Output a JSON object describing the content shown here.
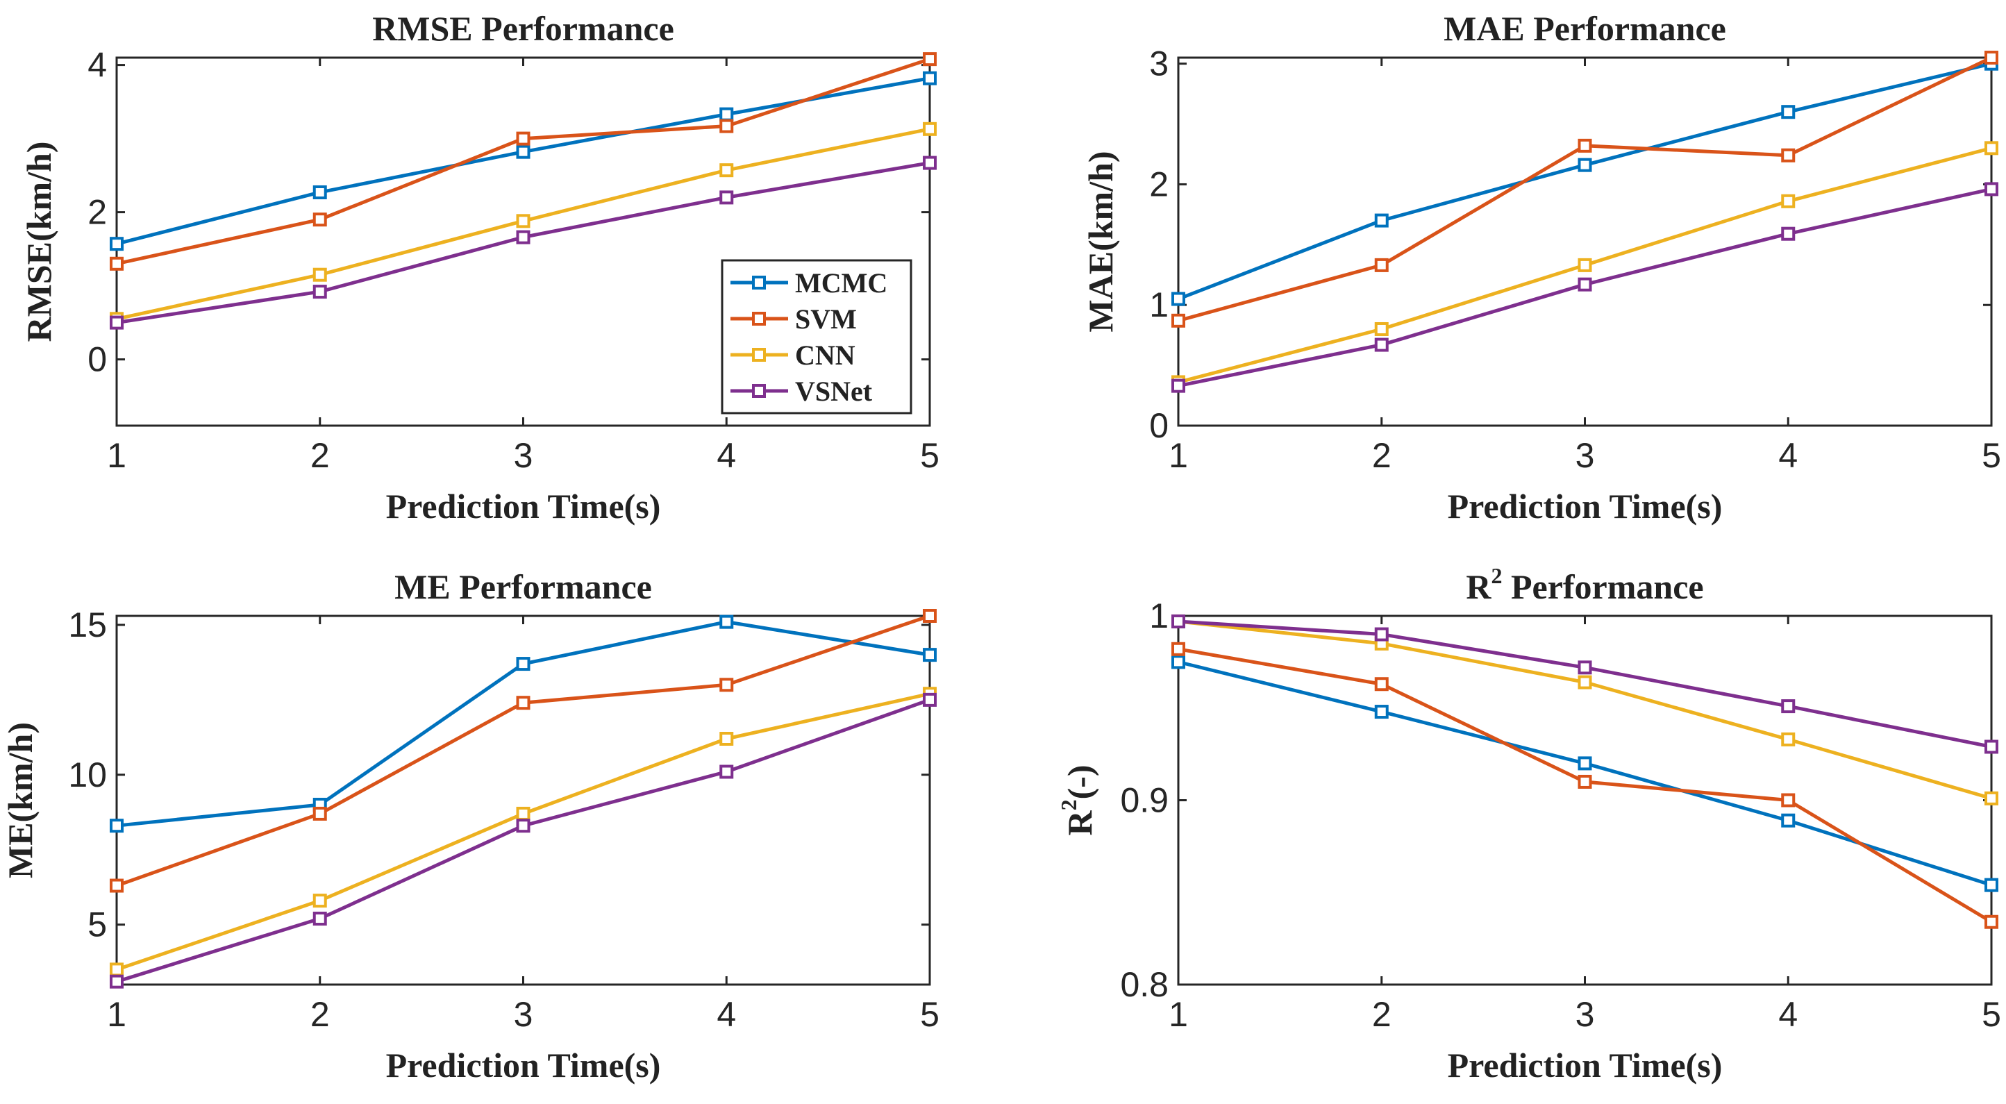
{
  "colors": {
    "MCMC": "#0072BD",
    "SVM": "#D95319",
    "CNN": "#EDB120",
    "VSNet": "#7E2F8E",
    "axis": "#262626"
  },
  "legend": [
    "MCMC",
    "SVM",
    "CNN",
    "VSNet"
  ],
  "chart_data": [
    {
      "id": "rmse",
      "type": "line",
      "title": "RMSE Performance",
      "xlabel": "Prediction Time(s)",
      "ylabel": "RMSE(km/h)",
      "x": [
        1,
        2,
        3,
        4,
        5
      ],
      "xticks": [
        "1",
        "2",
        "3",
        "4",
        "5"
      ],
      "ylim": [
        -0.9,
        4.1
      ],
      "yticks": [
        0,
        2,
        4
      ],
      "ytick_labels": [
        "0",
        "2",
        "4"
      ],
      "legend_position": "bottom-right",
      "series": [
        {
          "name": "MCMC",
          "values": [
            1.57,
            2.27,
            2.82,
            3.33,
            3.82
          ]
        },
        {
          "name": "SVM",
          "values": [
            1.3,
            1.9,
            3.0,
            3.17,
            4.08
          ]
        },
        {
          "name": "CNN",
          "values": [
            0.55,
            1.15,
            1.88,
            2.57,
            3.13
          ]
        },
        {
          "name": "VSNet",
          "values": [
            0.5,
            0.92,
            1.66,
            2.2,
            2.67
          ]
        }
      ]
    },
    {
      "id": "mae",
      "type": "line",
      "title": "MAE Performance",
      "xlabel": "Prediction Time(s)",
      "ylabel": "MAE(km/h)",
      "x": [
        1,
        2,
        3,
        4,
        5
      ],
      "xticks": [
        "1",
        "2",
        "3",
        "4",
        "5"
      ],
      "ylim": [
        0,
        3.05
      ],
      "yticks": [
        0,
        1,
        2,
        3
      ],
      "ytick_labels": [
        "0",
        "1",
        "2",
        "3"
      ],
      "series": [
        {
          "name": "MCMC",
          "values": [
            1.05,
            1.7,
            2.16,
            2.6,
            3.0
          ]
        },
        {
          "name": "SVM",
          "values": [
            0.87,
            1.33,
            2.32,
            2.24,
            3.05
          ]
        },
        {
          "name": "CNN",
          "values": [
            0.36,
            0.8,
            1.33,
            1.86,
            2.3
          ]
        },
        {
          "name": "VSNet",
          "values": [
            0.33,
            0.67,
            1.17,
            1.59,
            1.96
          ]
        }
      ]
    },
    {
      "id": "me",
      "type": "line",
      "title": "ME Performance",
      "xlabel": "Prediction Time(s)",
      "ylabel": "ME(km/h)",
      "x": [
        1,
        2,
        3,
        4,
        5
      ],
      "xticks": [
        "1",
        "2",
        "3",
        "4",
        "5"
      ],
      "ylim": [
        3,
        15.3
      ],
      "yticks": [
        5,
        10,
        15
      ],
      "ytick_labels": [
        "5",
        "10",
        "15"
      ],
      "series": [
        {
          "name": "MCMC",
          "values": [
            8.3,
            9.0,
            13.7,
            15.1,
            14.0
          ]
        },
        {
          "name": "SVM",
          "values": [
            6.3,
            8.7,
            12.4,
            13.0,
            15.3
          ]
        },
        {
          "name": "CNN",
          "values": [
            3.5,
            5.8,
            8.7,
            11.2,
            12.7
          ]
        },
        {
          "name": "VSNet",
          "values": [
            3.1,
            5.2,
            8.3,
            10.1,
            12.5
          ]
        }
      ]
    },
    {
      "id": "r2",
      "type": "line",
      "title": "R",
      "title_sup": "2",
      "title_rest": " Performance",
      "xlabel": "Prediction Time(s)",
      "ylabel": "R",
      "ylabel_sup": "2",
      "ylabel_rest": "(-)",
      "x": [
        1,
        2,
        3,
        4,
        5
      ],
      "xticks": [
        "1",
        "2",
        "3",
        "4",
        "5"
      ],
      "ylim": [
        0.8,
        1.0
      ],
      "yticks": [
        0.8,
        0.9,
        1.0
      ],
      "ytick_labels": [
        "0.8",
        "0.9",
        "1"
      ],
      "series": [
        {
          "name": "MCMC",
          "values": [
            0.975,
            0.948,
            0.92,
            0.889,
            0.854
          ]
        },
        {
          "name": "SVM",
          "values": [
            0.982,
            0.963,
            0.91,
            0.9,
            0.834
          ]
        },
        {
          "name": "CNN",
          "values": [
            0.997,
            0.985,
            0.964,
            0.933,
            0.901
          ]
        },
        {
          "name": "VSNet",
          "values": [
            0.997,
            0.99,
            0.972,
            0.951,
            0.929
          ]
        }
      ]
    }
  ]
}
